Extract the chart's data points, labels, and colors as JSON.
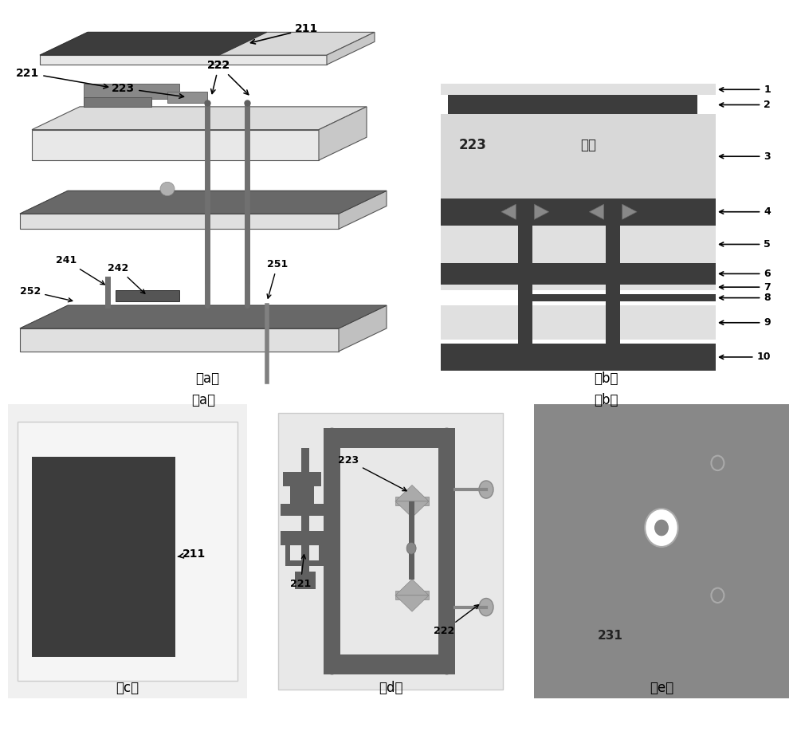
{
  "bg_color": "#ffffff",
  "dark_gray": "#3c3c3c",
  "mid_gray": "#808080",
  "light_gray": "#c8c8c8",
  "lighter_gray": "#e0e0e0",
  "foam_gray": "#d8d8d8",
  "panel_e_bg": "#888888",
  "label_a": "（a）",
  "label_b": "（b）",
  "label_c": "（c）",
  "label_d": "（d）",
  "label_e": "（e）"
}
